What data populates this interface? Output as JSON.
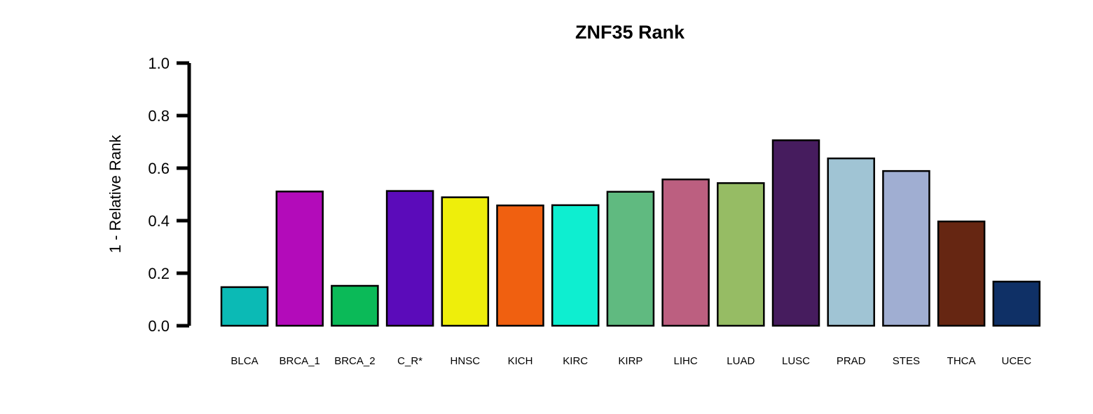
{
  "chart_data": {
    "type": "bar",
    "title": "ZNF35 Rank",
    "xlabel": "",
    "ylabel": "1 - Relative Rank",
    "ylim": [
      0,
      1
    ],
    "yticks": [
      "0.0",
      "0.2",
      "0.4",
      "0.6",
      "0.8",
      "1.0"
    ],
    "categories": [
      "BLCA",
      "BRCA_1",
      "BRCA_2",
      "C_R*",
      "HNSC",
      "KICH",
      "KIRC",
      "KIRP",
      "LIHC",
      "LUAD",
      "LUSC",
      "PRAD",
      "STES",
      "THCA",
      "UCEC"
    ],
    "values": [
      0.147,
      0.511,
      0.152,
      0.513,
      0.489,
      0.458,
      0.459,
      0.51,
      0.557,
      0.543,
      0.706,
      0.637,
      0.589,
      0.397,
      0.168
    ],
    "colors": [
      "#0bbab5",
      "#b30bba",
      "#0bba58",
      "#5b0bba",
      "#eeee0b",
      "#f06010",
      "#0eeed0",
      "#60ba80",
      "#bc5f80",
      "#96bc64",
      "#461c5e",
      "#a0c4d4",
      "#a0aed2",
      "#662612",
      "#0f3066"
    ],
    "grid": false,
    "legend": "none"
  }
}
